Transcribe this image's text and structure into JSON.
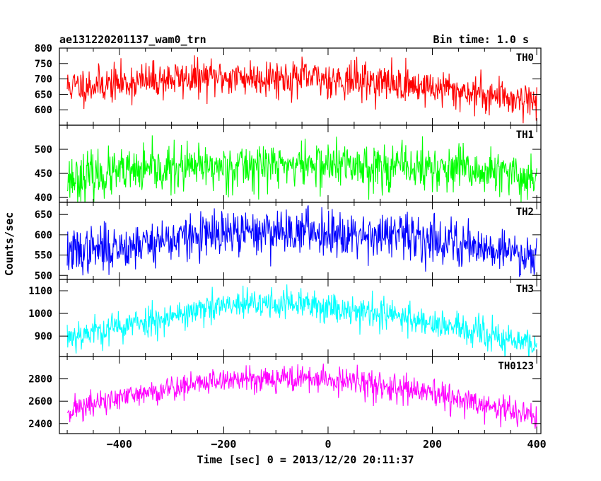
{
  "chart_data": {
    "type": "line",
    "title": "ae131220201137_wam0_trn",
    "subtitle": "Bin time: 1.0 s",
    "xlabel": "Time [sec] 0 = 2013/12/20 20:11:37",
    "ylabel": "Counts/sec",
    "xlim": [
      -515,
      408
    ],
    "x_ticks": [
      -400,
      -200,
      0,
      200,
      400
    ],
    "x_tick_labels": [
      "−400",
      "−200",
      "0",
      "200",
      "400"
    ],
    "grid": false,
    "panels": [
      {
        "name": "TH0",
        "color": "#ff0000",
        "ylim": [
          550,
          800
        ],
        "y_ticks": [
          600,
          650,
          700,
          750,
          800
        ],
        "y_tick_labels": [
          "600",
          "650",
          "700",
          "750",
          "800"
        ],
        "envelope": [
          [
            -500,
            675
          ],
          [
            -400,
            685
          ],
          [
            -300,
            700
          ],
          [
            -200,
            705
          ],
          [
            -100,
            705
          ],
          [
            0,
            700
          ],
          [
            100,
            690
          ],
          [
            200,
            672
          ],
          [
            300,
            650
          ],
          [
            400,
            630
          ]
        ],
        "noise": 30,
        "seed": 11
      },
      {
        "name": "TH1",
        "color": "#00ff00",
        "ylim": [
          390,
          550
        ],
        "y_ticks": [
          400,
          450,
          500
        ],
        "y_tick_labels": [
          "400",
          "450",
          "500"
        ],
        "envelope": [
          [
            -500,
            440
          ],
          [
            -400,
            450
          ],
          [
            -300,
            458
          ],
          [
            -200,
            464
          ],
          [
            -100,
            468
          ],
          [
            0,
            468
          ],
          [
            100,
            465
          ],
          [
            200,
            460
          ],
          [
            300,
            452
          ],
          [
            400,
            440
          ]
        ],
        "noise": 24,
        "seed": 23
      },
      {
        "name": "TH2",
        "color": "#0000ff",
        "ylim": [
          490,
          680
        ],
        "y_ticks": [
          500,
          550,
          600,
          650
        ],
        "y_tick_labels": [
          "500",
          "550",
          "600",
          "650"
        ],
        "envelope": [
          [
            -500,
            555
          ],
          [
            -400,
            570
          ],
          [
            -300,
            590
          ],
          [
            -200,
            600
          ],
          [
            -100,
            610
          ],
          [
            0,
            608
          ],
          [
            100,
            600
          ],
          [
            200,
            590
          ],
          [
            300,
            570
          ],
          [
            400,
            548
          ]
        ],
        "noise": 28,
        "seed": 37
      },
      {
        "name": "TH3",
        "color": "#00ffff",
        "ylim": [
          810,
          1150
        ],
        "y_ticks": [
          900,
          1000,
          1100
        ],
        "y_tick_labels": [
          "900",
          "1000",
          "1100"
        ],
        "envelope": [
          [
            -500,
            900
          ],
          [
            -400,
            940
          ],
          [
            -300,
            990
          ],
          [
            -200,
            1030
          ],
          [
            -100,
            1045
          ],
          [
            0,
            1030
          ],
          [
            100,
            1000
          ],
          [
            200,
            960
          ],
          [
            300,
            905
          ],
          [
            400,
            860
          ]
        ],
        "noise": 35,
        "seed": 53
      },
      {
        "name": "TH0123",
        "color": "#ff00ff",
        "ylim": [
          2310,
          3000
        ],
        "y_ticks": [
          2400,
          2600,
          2800
        ],
        "y_tick_labels": [
          "2400",
          "2600",
          "2800"
        ],
        "envelope": [
          [
            -500,
            2520
          ],
          [
            -400,
            2620
          ],
          [
            -300,
            2720
          ],
          [
            -200,
            2790
          ],
          [
            -100,
            2810
          ],
          [
            0,
            2790
          ],
          [
            100,
            2740
          ],
          [
            200,
            2660
          ],
          [
            300,
            2560
          ],
          [
            400,
            2460
          ]
        ],
        "noise": 60,
        "seed": 71
      }
    ]
  }
}
